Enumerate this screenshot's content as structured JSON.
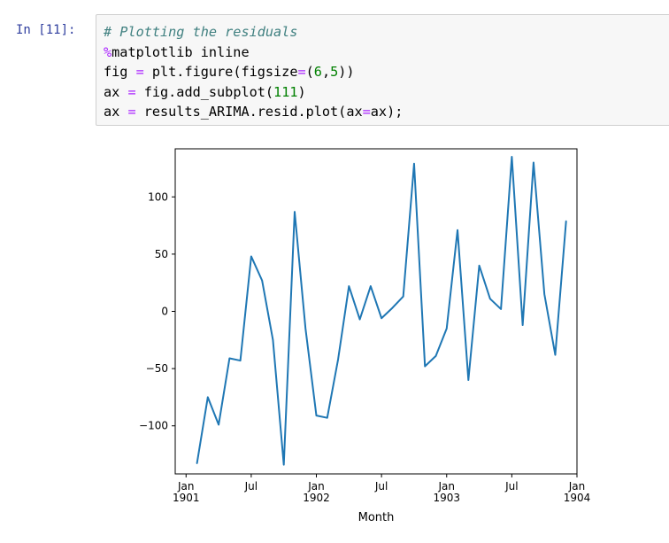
{
  "cell": {
    "prompt": "In [11]:",
    "code_lines": [
      [
        {
          "t": "# Plotting the residuals",
          "c": "c-comment"
        }
      ],
      [
        {
          "t": "%",
          "c": "c-magic"
        },
        {
          "t": "matplotlib inline",
          "c": ""
        }
      ],
      [
        {
          "t": "fig ",
          "c": ""
        },
        {
          "t": "=",
          "c": "c-op"
        },
        {
          "t": " plt.figure(figsize",
          "c": ""
        },
        {
          "t": "=",
          "c": "c-op"
        },
        {
          "t": "(",
          "c": ""
        },
        {
          "t": "6",
          "c": "c-num"
        },
        {
          "t": ",",
          "c": ""
        },
        {
          "t": "5",
          "c": "c-num"
        },
        {
          "t": "))",
          "c": ""
        }
      ],
      [
        {
          "t": "ax ",
          "c": ""
        },
        {
          "t": "=",
          "c": "c-op"
        },
        {
          "t": " fig.add_subplot(",
          "c": ""
        },
        {
          "t": "111",
          "c": "c-num"
        },
        {
          "t": ")",
          "c": ""
        }
      ],
      [
        {
          "t": "ax ",
          "c": ""
        },
        {
          "t": "=",
          "c": "c-op"
        },
        {
          "t": " results_ARIMA.resid.plot(ax",
          "c": ""
        },
        {
          "t": "=",
          "c": "c-op"
        },
        {
          "t": "ax);",
          "c": ""
        }
      ]
    ]
  },
  "chart_data": {
    "type": "line",
    "title": "",
    "xlabel": "Month",
    "ylabel": "",
    "ylim": [
      -142,
      142
    ],
    "yticks": [
      100,
      50,
      0,
      -50,
      -100
    ],
    "ytick_labels": [
      "100",
      "50",
      "0",
      "−50",
      "−100"
    ],
    "xlim": [
      "1900-12",
      "1904-01"
    ],
    "xticks": [
      {
        "x": "1901-01",
        "label": [
          "Jan",
          "1901"
        ]
      },
      {
        "x": "1901-07",
        "label": [
          "Jul"
        ]
      },
      {
        "x": "1902-01",
        "label": [
          "Jan",
          "1902"
        ]
      },
      {
        "x": "1902-07",
        "label": [
          "Jul"
        ]
      },
      {
        "x": "1903-01",
        "label": [
          "Jan",
          "1903"
        ]
      },
      {
        "x": "1903-07",
        "label": [
          "Jul"
        ]
      },
      {
        "x": "1904-01",
        "label": [
          "Jan",
          "1904"
        ]
      }
    ],
    "grid": false,
    "color": "#1f77b4",
    "series": [
      {
        "x": [
          "1901-02",
          "1901-03",
          "1901-04",
          "1901-05",
          "1901-06",
          "1901-07",
          "1901-08",
          "1901-09",
          "1901-10",
          "1901-11",
          "1901-12",
          "1902-01",
          "1902-02",
          "1902-03",
          "1902-04",
          "1902-05",
          "1902-06",
          "1902-07",
          "1902-08",
          "1902-09",
          "1902-10",
          "1902-11",
          "1902-12",
          "1903-01",
          "1903-02",
          "1903-03",
          "1903-04",
          "1903-05",
          "1903-06",
          "1903-07",
          "1903-08",
          "1903-09",
          "1903-10",
          "1903-11",
          "1903-12"
        ],
        "values": [
          -133,
          -75,
          -99,
          -41,
          -43,
          48,
          27,
          -25,
          -134,
          87,
          -15,
          -91,
          -93,
          -42,
          22,
          -7,
          22,
          -6,
          3,
          13,
          129,
          -48,
          -39,
          -15,
          71,
          -60,
          40,
          11,
          2,
          135,
          -12,
          130,
          15,
          -38,
          79
        ]
      }
    ]
  }
}
